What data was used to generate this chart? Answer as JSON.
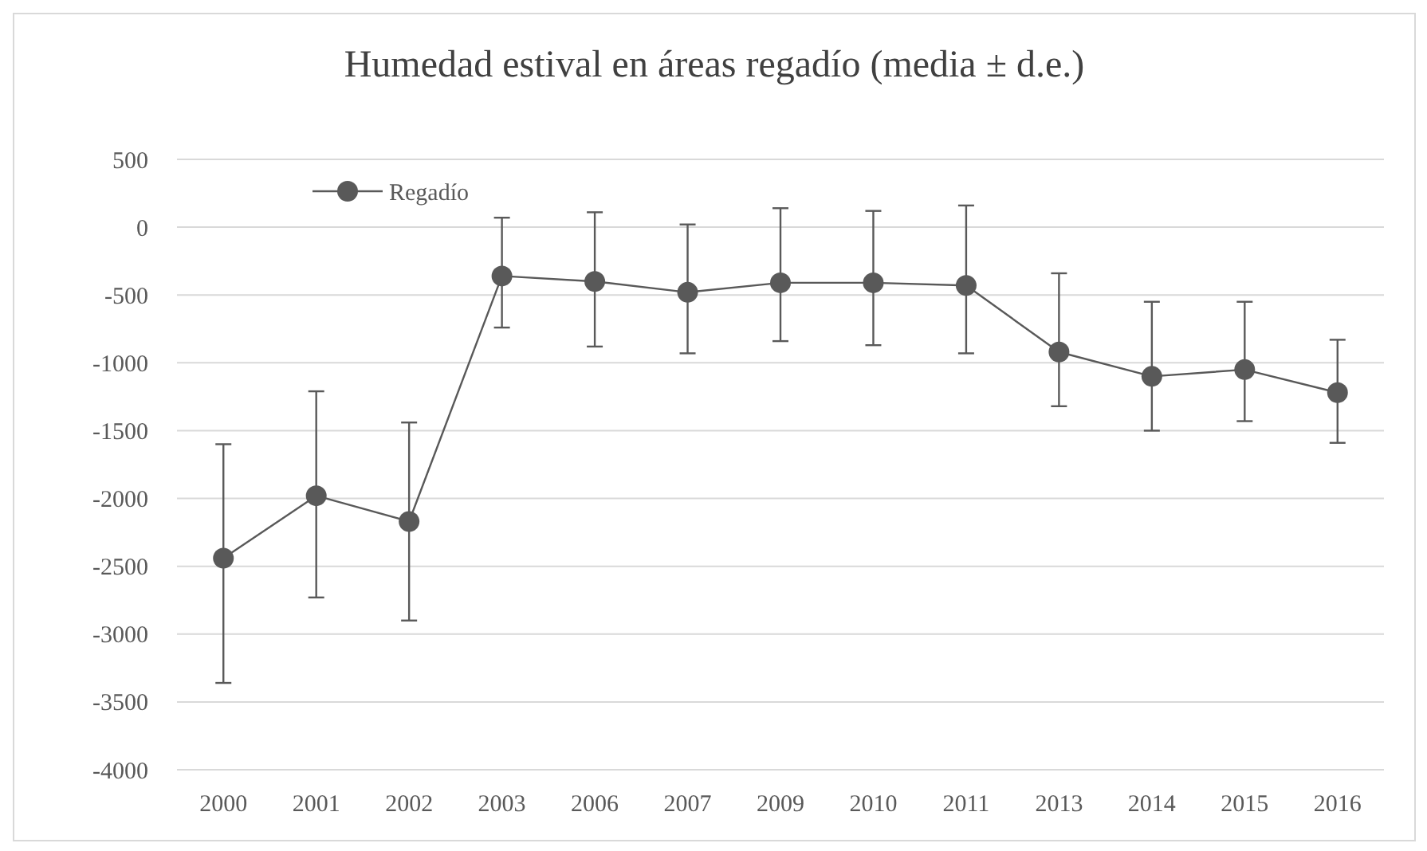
{
  "chart_data": {
    "type": "line",
    "title": "Humedad estival en áreas regadío (media ± d.e.)",
    "categories": [
      "2000",
      "2001",
      "2002",
      "2003",
      "2006",
      "2007",
      "2009",
      "2010",
      "2011",
      "2013",
      "2014",
      "2015",
      "2016"
    ],
    "series": [
      {
        "name": "Regadío",
        "color": "#595959",
        "values": [
          -2440,
          -1980,
          -2170,
          -360,
          -400,
          -480,
          -410,
          -410,
          -430,
          -920,
          -1100,
          -1050,
          -1220
        ],
        "errors": [
          [
            -3360,
            -1600
          ],
          [
            -2730,
            -1210
          ],
          [
            -2900,
            -1440
          ],
          [
            -740,
            70
          ],
          [
            -880,
            110
          ],
          [
            -930,
            20
          ],
          [
            -840,
            140
          ],
          [
            -870,
            120
          ],
          [
            -930,
            160
          ],
          [
            -1320,
            -340
          ],
          [
            -1500,
            -550
          ],
          [
            -1430,
            -550
          ],
          [
            -1590,
            -830
          ]
        ]
      }
    ],
    "ylim": [
      -4000,
      500
    ],
    "yticks": [
      -4000,
      -3500,
      -3000,
      -2500,
      -2000,
      -1500,
      -1000,
      -500,
      0,
      500
    ],
    "grid": "y",
    "legend": "top left",
    "marker": "circle",
    "line_style": "solid"
  }
}
